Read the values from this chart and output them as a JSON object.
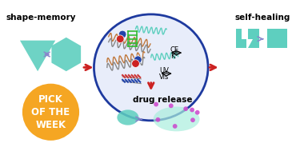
{
  "bg_color": "#ffffff",
  "shape_memory_label": "shape-memory",
  "self_healing_label": "self-healing",
  "drug_release_label": "drug release",
  "pick_label": "PICK\nOF THE\nWEEK",
  "pick_color": "#F5A623",
  "pick_text_color": "#ffffff",
  "teal_color": "#5ECFBF",
  "ellipse_color": "#1E3A9F",
  "red_arrow_color": "#CC2222",
  "label_fontsize": 7.5,
  "pick_fontsize": 8.5,
  "inner_label_fontsize": 6,
  "ce_label": "CE",
  "k_label": "K⁺",
  "uv_label": "UV",
  "vis_label": "Vis",
  "purple_dot": "#CC44CC",
  "blue_dot": "#2244AA",
  "red_dot": "#CC2222"
}
